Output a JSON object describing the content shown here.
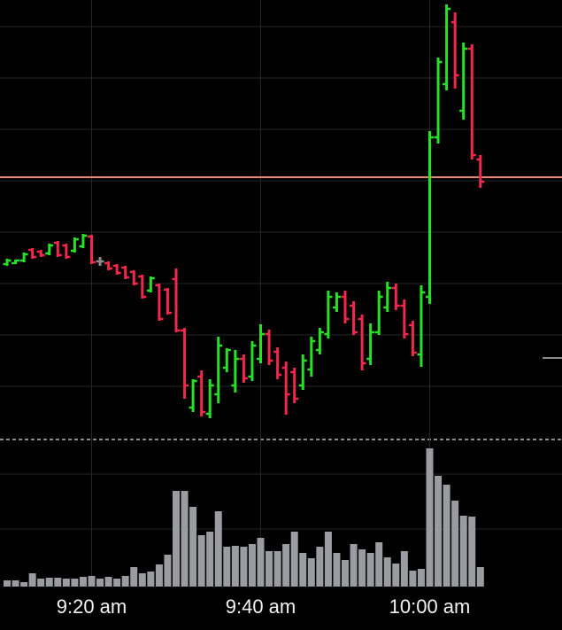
{
  "chart_data": {
    "type": "ohlc",
    "categories": [
      null,
      null,
      null,
      null,
      null,
      null,
      null,
      null,
      null,
      null,
      "9:20 am",
      null,
      null,
      null,
      null,
      null,
      null,
      null,
      null,
      null,
      null,
      null,
      null,
      null,
      null,
      null,
      null,
      null,
      null,
      null,
      "9:40 am",
      null,
      null,
      null,
      null,
      null,
      null,
      null,
      null,
      null,
      null,
      null,
      null,
      null,
      null,
      null,
      null,
      null,
      null,
      null,
      "10:00 am",
      null,
      null,
      null,
      null,
      null,
      null
    ],
    "open": [
      197,
      198,
      201,
      213,
      211,
      209,
      221,
      218,
      212,
      217,
      228,
      200,
      198,
      195,
      193,
      188,
      183,
      167,
      173,
      168,
      180,
      122,
      35,
      70,
      28,
      50,
      80,
      60,
      90,
      70,
      90,
      118,
      98,
      80,
      75,
      60,
      78,
      100,
      118,
      148,
      160,
      150,
      135,
      90,
      120,
      148,
      170,
      150,
      128,
      95,
      160,
      340,
      400,
      470,
      370,
      440,
      315
    ],
    "high": [
      203,
      202,
      210,
      215,
      213,
      220,
      223,
      220,
      227,
      231,
      230,
      205,
      200,
      197,
      195,
      190,
      185,
      183,
      175,
      170,
      192,
      125,
      67,
      77,
      67,
      115,
      102,
      100,
      95,
      110,
      129,
      123,
      103,
      87,
      80,
      95,
      115,
      125,
      167,
      165,
      167,
      155,
      140,
      130,
      167,
      177,
      175,
      157,
      133,
      173,
      347,
      430,
      490,
      481,
      447,
      445,
      320
    ],
    "low": [
      195,
      197,
      199,
      203,
      205,
      207,
      205,
      203,
      210,
      215,
      197,
      195,
      190,
      185,
      180,
      173,
      158,
      165,
      133,
      140,
      120,
      45,
      30,
      25,
      23,
      40,
      75,
      52,
      63,
      65,
      85,
      83,
      67,
      27,
      40,
      55,
      70,
      95,
      113,
      143,
      130,
      117,
      77,
      83,
      117,
      143,
      145,
      113,
      93,
      81,
      152,
      333,
      393,
      395,
      360,
      315,
      283
    ],
    "close": [
      201,
      201,
      208,
      205,
      207,
      218,
      207,
      205,
      225,
      229,
      199,
      200,
      192,
      187,
      182,
      175,
      160,
      181,
      135,
      142,
      122,
      60,
      65,
      30,
      60,
      105,
      100,
      90,
      68,
      105,
      118,
      88,
      72,
      50,
      45,
      88,
      110,
      120,
      160,
      160,
      135,
      120,
      85,
      120,
      160,
      170,
      150,
      118,
      97,
      165,
      340,
      425,
      485,
      410,
      440,
      320,
      290
    ],
    "volume": [
      7,
      7,
      5,
      15,
      9,
      10,
      10,
      9,
      9,
      11,
      12,
      9,
      11,
      9,
      12,
      22,
      15,
      17,
      25,
      36,
      108,
      108,
      90,
      58,
      62,
      85,
      45,
      46,
      45,
      48,
      55,
      40,
      40,
      48,
      62,
      38,
      32,
      45,
      62,
      38,
      30,
      48,
      42,
      38,
      50,
      33,
      26,
      40,
      18,
      20,
      156,
      125,
      115,
      97,
      80,
      79,
      22
    ],
    "up_color": "#27e127",
    "down_color": "#f0294c",
    "flat_color": "#8c8c8c",
    "volume_color": "#9b9ca1",
    "ylim": [
      0,
      495
    ],
    "yticks": [
      59,
      117,
      175,
      233,
      291,
      349,
      407,
      465
    ],
    "volume_ylim": [
      0,
      162
    ],
    "volume_ticks": [
      65,
      127
    ],
    "reference_line": 295,
    "reference_color": "#e8866e",
    "price_marker": 91,
    "grid": true
  }
}
